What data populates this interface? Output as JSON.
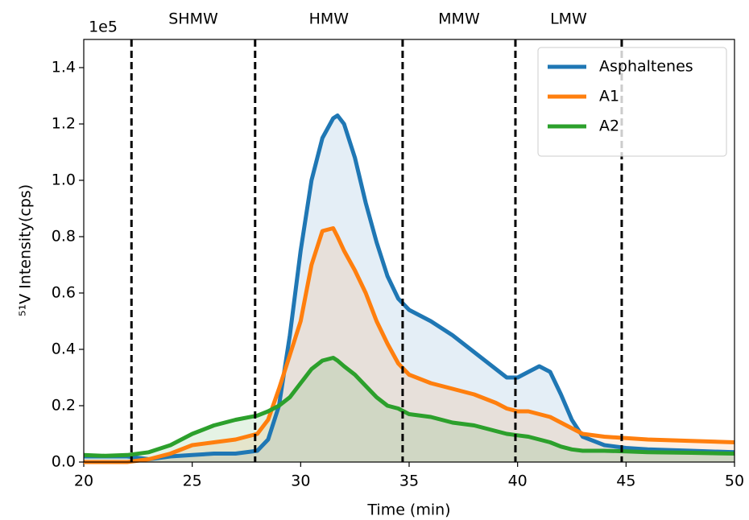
{
  "chart_data": {
    "type": "line",
    "x_label": "Time (min)",
    "y_label": "⁵¹V Intensity(cps)",
    "y_offset_label": "1e5",
    "x": [
      20,
      21,
      22,
      23,
      24,
      25,
      26,
      27,
      28,
      28.5,
      29,
      29.5,
      30,
      30.5,
      31,
      31.5,
      31.7,
      32,
      32.5,
      33,
      33.5,
      34,
      34.5,
      35,
      36,
      37,
      38,
      39,
      39.5,
      40,
      40.5,
      41,
      41.5,
      42,
      42.5,
      43,
      44,
      45,
      46,
      48,
      50
    ],
    "series": [
      {
        "name": "Asphaltenes",
        "color": "#1f77b4",
        "values": [
          0.02,
          0.02,
          0.02,
          0.01,
          0.02,
          0.025,
          0.03,
          0.03,
          0.04,
          0.08,
          0.2,
          0.45,
          0.75,
          1.0,
          1.15,
          1.22,
          1.23,
          1.2,
          1.08,
          0.92,
          0.78,
          0.66,
          0.58,
          0.54,
          0.5,
          0.45,
          0.39,
          0.33,
          0.3,
          0.3,
          0.32,
          0.34,
          0.32,
          0.24,
          0.15,
          0.09,
          0.06,
          0.05,
          0.045,
          0.04,
          0.035
        ]
      },
      {
        "name": "A1",
        "color": "#ff7f0e",
        "values": [
          0.0,
          0.0,
          0.0,
          0.01,
          0.03,
          0.06,
          0.07,
          0.08,
          0.1,
          0.15,
          0.26,
          0.38,
          0.5,
          0.7,
          0.82,
          0.83,
          0.8,
          0.75,
          0.68,
          0.6,
          0.5,
          0.42,
          0.35,
          0.31,
          0.28,
          0.26,
          0.24,
          0.21,
          0.19,
          0.18,
          0.18,
          0.17,
          0.16,
          0.14,
          0.12,
          0.1,
          0.09,
          0.085,
          0.08,
          0.075,
          0.07
        ]
      },
      {
        "name": "A2",
        "color": "#2ca02c",
        "values": [
          0.025,
          0.022,
          0.025,
          0.035,
          0.06,
          0.1,
          0.13,
          0.15,
          0.165,
          0.18,
          0.2,
          0.23,
          0.28,
          0.33,
          0.36,
          0.37,
          0.36,
          0.34,
          0.31,
          0.27,
          0.23,
          0.2,
          0.19,
          0.17,
          0.16,
          0.14,
          0.13,
          0.11,
          0.1,
          0.095,
          0.09,
          0.08,
          0.07,
          0.055,
          0.045,
          0.04,
          0.04,
          0.038,
          0.035,
          0.033,
          0.03
        ]
      }
    ],
    "dividers": [
      22.2,
      27.9,
      34.7,
      39.9,
      44.8
    ],
    "regions": [
      "SHMW",
      "HMW",
      "MMW",
      "LMW"
    ],
    "xlim": [
      20,
      50
    ],
    "xticks": [
      20,
      25,
      30,
      35,
      40,
      45,
      50
    ],
    "ylim": [
      0,
      1.5
    ],
    "yticks": [
      {
        "value": 0,
        "label": "0.0"
      },
      {
        "value": 0.2,
        "label": "0.2"
      },
      {
        "value": 0.4,
        "label": "0.4"
      },
      {
        "value": 0.6,
        "label": "0.6"
      },
      {
        "value": 0.8,
        "label": "0.8"
      },
      {
        "value": 1.0,
        "label": "1.0"
      },
      {
        "value": 1.2,
        "label": "1.2"
      },
      {
        "value": 1.4,
        "label": "1.4"
      }
    ],
    "legend": "upper right",
    "fill": true
  }
}
